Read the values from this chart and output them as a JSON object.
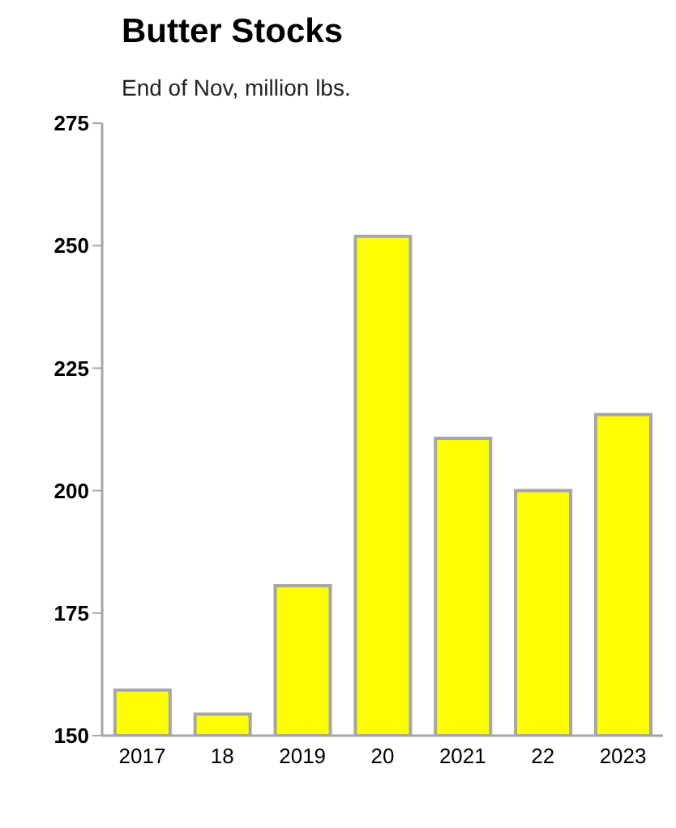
{
  "chart_data": {
    "type": "bar",
    "title": "Butter Stocks",
    "subtitle": "End of Nov, million lbs.",
    "categories": [
      "2017",
      "18",
      "2019",
      "20",
      "2021",
      "22",
      "2023"
    ],
    "values": [
      159.3,
      154.4,
      180.6,
      251.9,
      210.7,
      200,
      215.5
    ],
    "color": "#ffff00",
    "ylim": [
      150,
      275
    ],
    "yticks": [
      150,
      175,
      200,
      225,
      250,
      275
    ],
    "grid": false,
    "legend": false
  }
}
